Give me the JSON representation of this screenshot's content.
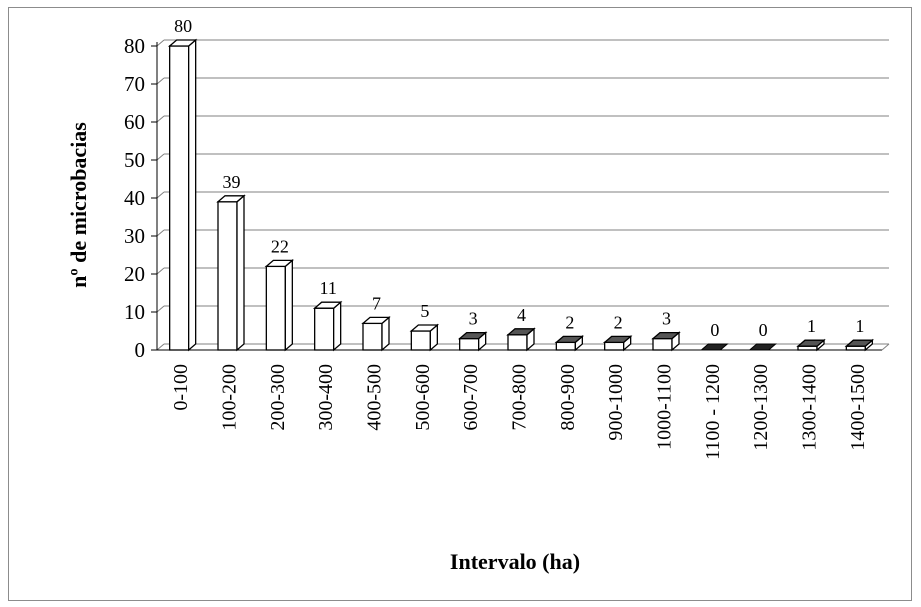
{
  "chart_data": {
    "type": "bar",
    "style": "3d-column",
    "categories": [
      "0-100",
      "100-200",
      "200-300",
      "300-400",
      "400-500",
      "500-600",
      "600-700",
      "700-800",
      "800-900",
      "900-1000",
      "1000-1100",
      "1100 - 1200",
      "1200-1300",
      "1300-1400",
      "1400-1500"
    ],
    "values": [
      80,
      39,
      22,
      11,
      7,
      5,
      3,
      4,
      2,
      2,
      3,
      0,
      0,
      1,
      1
    ],
    "data_labels": [
      "80",
      "39",
      "22",
      "11",
      "7",
      "5",
      "3",
      "4",
      "2",
      "2",
      "3",
      "0",
      "0",
      "1",
      "1"
    ],
    "title": "",
    "xlabel": "Intervalo  (ha)",
    "ylabel": "nº de microbacias",
    "ylim": [
      0,
      80
    ],
    "yticks": [
      0,
      10,
      20,
      30,
      40,
      50,
      60,
      70,
      80
    ],
    "grid": true,
    "legend": "none",
    "colors": {
      "bar_front": "#ffffff",
      "bar_side": "#ffffff",
      "bar_top": "#ffffff",
      "zero_bar": "#222222",
      "bar_stroke": "#000000",
      "grid": "#808080",
      "frame": "#8c8c8c"
    }
  }
}
